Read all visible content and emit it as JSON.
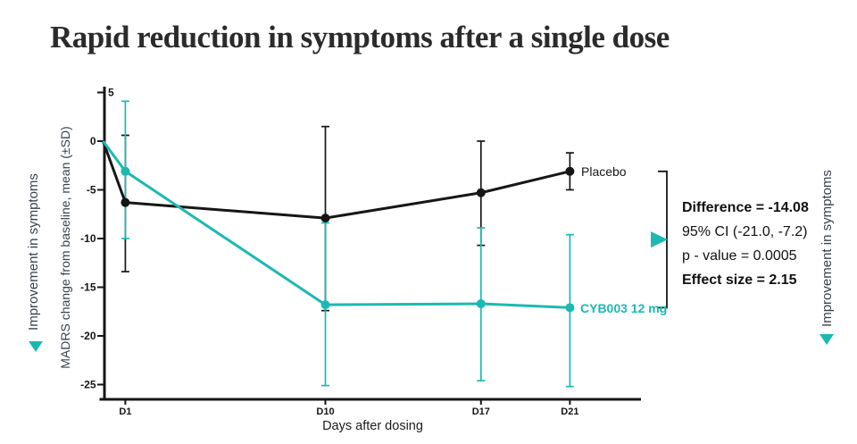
{
  "chart_data": {
    "type": "line",
    "title": "Rapid reduction in symptoms after a single dose",
    "xlabel": "Days after dosing",
    "ylabel": "MADRS change from baseline, mean (±SD)",
    "x_tick_labels": [
      "D1",
      "D10",
      "D17",
      "D21"
    ],
    "x_tick_days": [
      1,
      10,
      17,
      21
    ],
    "y_ticks": [
      5,
      0,
      -5,
      -10,
      -15,
      -20,
      -25
    ],
    "ylim": [
      -25,
      5
    ],
    "xlim_days": [
      0,
      24
    ],
    "grid": false,
    "legend_position": "line-end-labels",
    "series": [
      {
        "name": "Placebo",
        "color": "#161616",
        "days": [
          0,
          1,
          10,
          17,
          21
        ],
        "means": [
          0,
          -6.3,
          -7.9,
          -5.3,
          -3.1
        ],
        "sd_high": [
          null,
          0.6,
          1.5,
          0.0,
          -1.2
        ],
        "sd_low": [
          null,
          -13.4,
          -17.4,
          -10.7,
          -5.0
        ]
      },
      {
        "name": "CYB003 12 mg",
        "color": "#1cb9b3",
        "days": [
          0,
          1,
          10,
          17,
          21
        ],
        "means": [
          0,
          -3.1,
          -16.8,
          -16.7,
          -17.1
        ],
        "sd_high": [
          null,
          4.1,
          -8.4,
          -8.9,
          -9.6
        ],
        "sd_low": [
          null,
          -10.0,
          -25.1,
          -24.6,
          -25.2
        ]
      }
    ],
    "annotations": {
      "difference": "Difference = -14.08",
      "ci": "95% CI (-21.0, -7.2)",
      "p_value": "p - value = 0.0005",
      "effect_size": "Effect size = 2.15"
    },
    "side_labels": {
      "improvement_left": "Improvement in symptoms",
      "improvement_right": "Improvement in symptoms"
    }
  },
  "colors": {
    "accent_teal": "#1cb9b3",
    "line_black": "#161616",
    "title_text": "#2b2b2b",
    "axis_label_text": "#39414e"
  }
}
